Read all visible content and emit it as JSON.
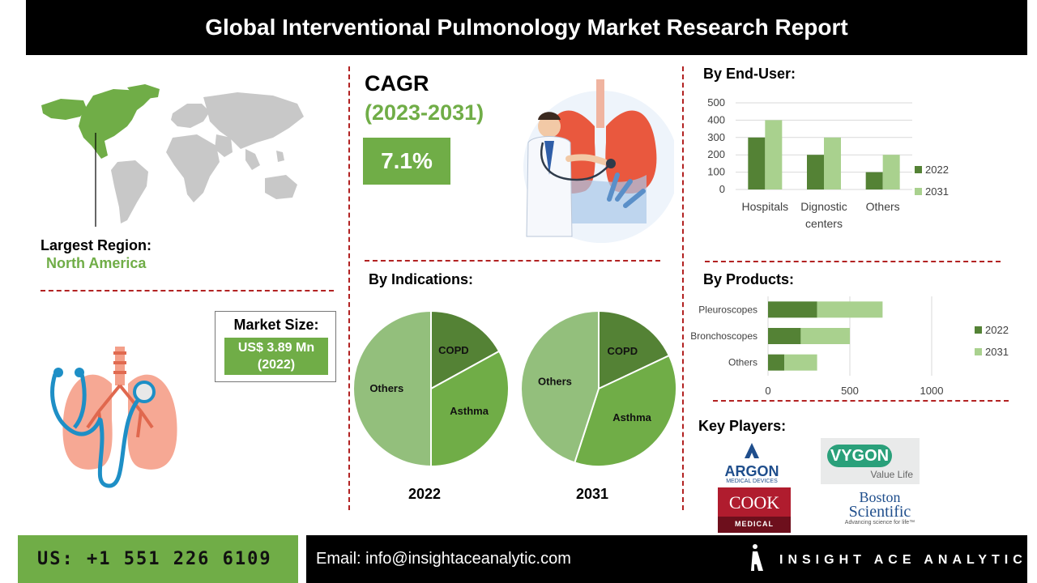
{
  "header": {
    "title": "Global Interventional Pulmonology Market Research Report"
  },
  "cagr": {
    "label": "CAGR",
    "period": "(2023-2031)",
    "value": "7.1%"
  },
  "region": {
    "label": "Largest Region:",
    "value": "North America"
  },
  "market_size": {
    "label": "Market Size:",
    "value_line1": "US$ 3.89 Mn",
    "value_line2": "(2022)"
  },
  "sections": {
    "end_user": "By End-User:",
    "indications": "By Indications:",
    "products": "By Products:",
    "key_players": "Key Players:"
  },
  "key_players": {
    "argon": {
      "name": "ARGON",
      "sub": "MEDICAL DEVICES"
    },
    "vygon": {
      "name": "VYGON",
      "sub": "Value Life"
    },
    "cook": {
      "name": "COOK",
      "sub": "MEDICAL"
    },
    "boston": {
      "line1": "Boston",
      "line2": "Scientific",
      "sub": "Advancing science for life™"
    }
  },
  "footer": {
    "phone": "US: +1 551 226 6109",
    "email": "Email: info@insightaceanalytic.com",
    "brand": "INSIGHT ACE ANALYTIC"
  },
  "colors": {
    "accent_green": "#70ad47",
    "dark_green": "#548235",
    "light_green": "#a9d18e",
    "divider_red": "#b22222"
  },
  "chart_data": [
    {
      "id": "end_user",
      "type": "bar",
      "categories": [
        "Hospitals",
        "Dignostic centers",
        "Others"
      ],
      "series": [
        {
          "name": "2022",
          "values": [
            300,
            200,
            100
          ]
        },
        {
          "name": "2031",
          "values": [
            400,
            300,
            200
          ]
        }
      ],
      "ylim": [
        0,
        500
      ],
      "yticks": [
        0,
        100,
        200,
        300,
        400,
        500
      ],
      "grid": true,
      "legend": "right"
    },
    {
      "id": "products",
      "type": "bar",
      "orientation": "horizontal",
      "stacked": true,
      "categories": [
        "Pleuroscopes",
        "Bronchoscopes",
        "Others"
      ],
      "series": [
        {
          "name": "2022",
          "values": [
            300,
            200,
            100
          ]
        },
        {
          "name": "2031",
          "values": [
            400,
            300,
            200
          ]
        }
      ],
      "xlim": [
        0,
        1000
      ],
      "xticks": [
        0,
        500,
        1000
      ],
      "grid": true,
      "legend": "right"
    },
    {
      "id": "indications_2022",
      "type": "pie",
      "title": "2022",
      "labels": [
        "COPD",
        "Asthma",
        "Others"
      ],
      "values": [
        17,
        33,
        50
      ]
    },
    {
      "id": "indications_2031",
      "type": "pie",
      "title": "2031",
      "labels": [
        "COPD",
        "Asthma",
        "Others"
      ],
      "values": [
        18,
        37,
        45
      ]
    }
  ]
}
